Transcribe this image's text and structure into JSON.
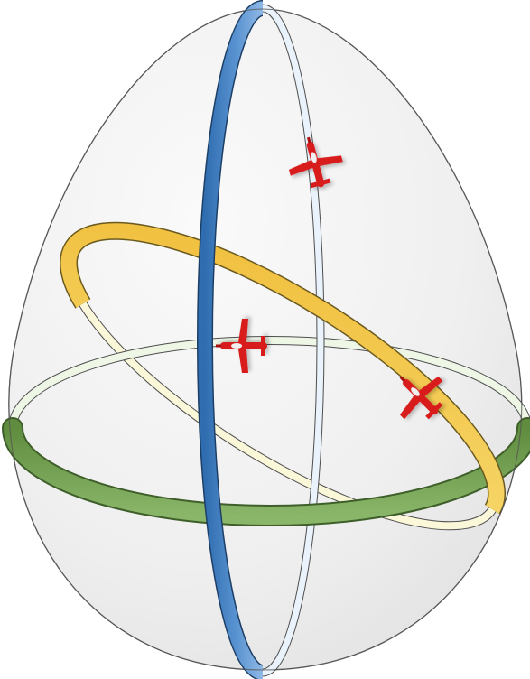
{
  "diagram": {
    "labels": [],
    "rings": [
      {
        "name": "green-ring",
        "color": "#6a9a4a",
        "light_color": "#eef6e6"
      },
      {
        "name": "yellow-ring",
        "color": "#f2c94c",
        "light_color": "#fbf7d9"
      },
      {
        "name": "blue-ring",
        "color": "#4a84c4",
        "light_color": "#eaf3fb"
      }
    ],
    "aircraft": [
      {
        "name": "aircraft-top",
        "color": "#d81e1e"
      },
      {
        "name": "aircraft-center",
        "color": "#d81e1e"
      },
      {
        "name": "aircraft-right",
        "color": "#d81e1e"
      }
    ],
    "egg_fill": "#efefef",
    "egg_stroke": "#666666"
  }
}
